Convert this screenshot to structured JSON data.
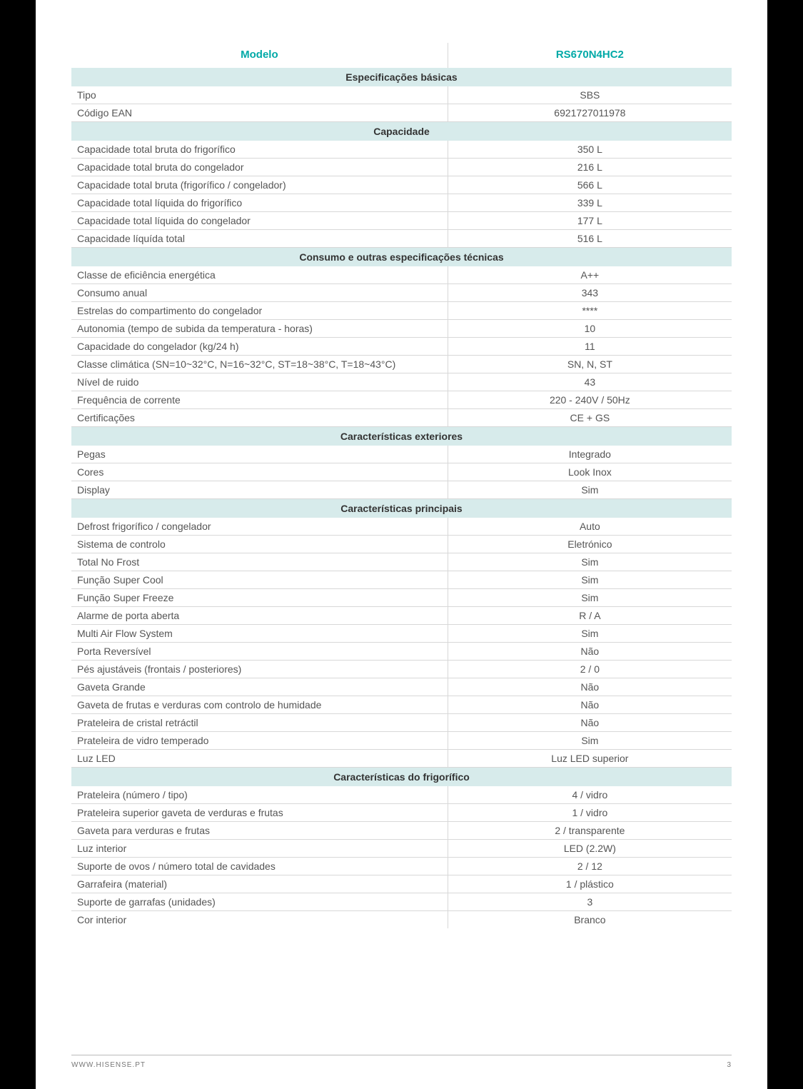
{
  "colors": {
    "accent": "#00a9a7",
    "section_bg": "#d7ebeb",
    "border": "#d8d8d8",
    "text": "#555"
  },
  "header": {
    "left": "Modelo",
    "right": "RS670N4HC2"
  },
  "sections": [
    {
      "title": "Especificações básicas",
      "rows": [
        {
          "label": "Tipo",
          "value": "SBS"
        },
        {
          "label": "Código EAN",
          "value": "6921727011978"
        }
      ]
    },
    {
      "title": "Capacidade",
      "rows": [
        {
          "label": "Capacidade total bruta do frigorífico",
          "value": "350 L"
        },
        {
          "label": "Capacidade total bruta do congelador",
          "value": "216 L"
        },
        {
          "label": "Capacidade total bruta (frigorífico / congelador)",
          "value": "566 L"
        },
        {
          "label": "Capacidade total líquida do frigorífico",
          "value": "339 L"
        },
        {
          "label": "Capacidade total líquida do congelador",
          "value": "177 L"
        },
        {
          "label": "Capacidade líquída total",
          "value": "516 L"
        }
      ]
    },
    {
      "title": "Consumo e outras especificações técnicas",
      "rows": [
        {
          "label": "Classe de eficiência energética",
          "value": "A++"
        },
        {
          "label": "Consumo anual",
          "value": "343"
        },
        {
          "label": "Estrelas do compartimento do congelador",
          "value": "****"
        },
        {
          "label": "Autonomia (tempo de subida da temperatura - horas)",
          "value": "10"
        },
        {
          "label": "Capacidade do congelador (kg/24 h)",
          "value": "11"
        },
        {
          "label": "Classe climática (SN=10~32°C, N=16~32°C, ST=18~38°C, T=18~43°C)",
          "value": "SN, N, ST"
        },
        {
          "label": "Nível de ruido",
          "value": "43"
        },
        {
          "label": "Frequência de corrente",
          "value": "220 - 240V / 50Hz"
        },
        {
          "label": "Certificações",
          "value": "CE + GS"
        }
      ]
    },
    {
      "title": "Características exteriores",
      "rows": [
        {
          "label": "Pegas",
          "value": "Integrado"
        },
        {
          "label": "Cores",
          "value": "Look Inox"
        },
        {
          "label": "Display",
          "value": "Sim"
        }
      ]
    },
    {
      "title": "Características principais",
      "rows": [
        {
          "label": "Defrost  frigorífico / congelador",
          "value": "Auto"
        },
        {
          "label": "Sistema de controlo",
          "value": "Eletrónico"
        },
        {
          "label": "Total No Frost",
          "value": "Sim"
        },
        {
          "label": "Função Super Cool",
          "value": "Sim"
        },
        {
          "label": "Função Super Freeze",
          "value": "Sim"
        },
        {
          "label": "Alarme de porta aberta",
          "value": "R / A"
        },
        {
          "label": "Multi Air Flow System",
          "value": "Sim"
        },
        {
          "label": "Porta Reversível",
          "value": "Não"
        },
        {
          "label": "Pés ajustáveis (frontais / posteriores)",
          "value": "2 / 0"
        },
        {
          "label": "Gaveta Grande",
          "value": "Não"
        },
        {
          "label": "Gaveta de frutas e verduras com controlo de humidade",
          "value": "Não"
        },
        {
          "label": "Prateleira de cristal retráctil",
          "value": "Não"
        },
        {
          "label": "Prateleira de vidro temperado",
          "value": "Sim"
        },
        {
          "label": "Luz LED",
          "value": "Luz LED superior"
        }
      ]
    },
    {
      "title": "Características do frigorífico",
      "rows": [
        {
          "label": "Prateleira (número / tipo)",
          "value": "4 / vidro"
        },
        {
          "label": "Prateleira superior gaveta de verduras e frutas",
          "value": "1 / vidro"
        },
        {
          "label": "Gaveta para verduras e frutas",
          "value": "2 / transparente"
        },
        {
          "label": "Luz interior",
          "value": "LED (2.2W)"
        },
        {
          "label": "Suporte de ovos / número total de cavidades",
          "value": "2 / 12"
        },
        {
          "label": "Garrafeira (material)",
          "value": "1 / plástico"
        },
        {
          "label": "Suporte de garrafas (unidades)",
          "value": "3"
        },
        {
          "label": "Cor interior",
          "value": "Branco"
        }
      ],
      "no_bottom_border_last": true
    }
  ],
  "footer": {
    "site": "WWW.HISENSE.PT",
    "page": "3"
  }
}
